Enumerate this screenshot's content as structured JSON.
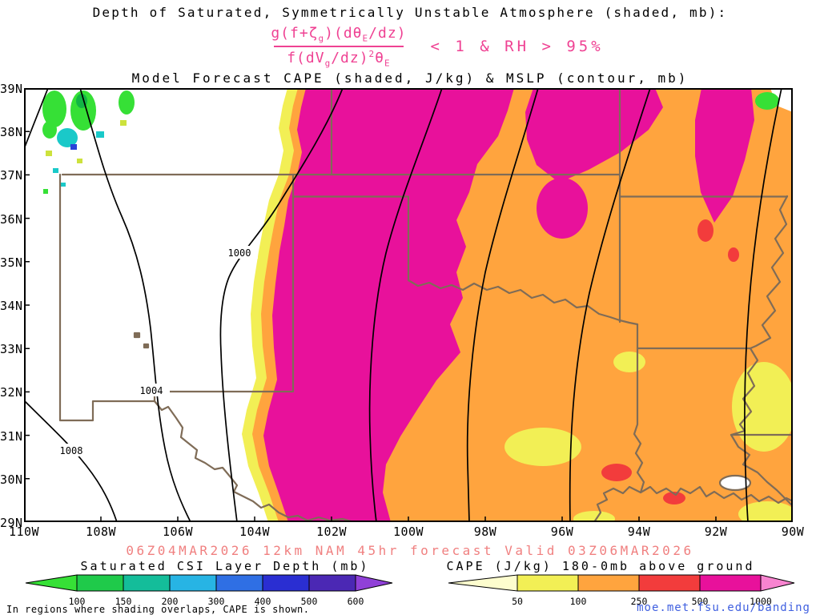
{
  "header": {
    "title1": "Depth of Saturated, Symmetrically Unstable Atmosphere (shaded, mb):",
    "formula": {
      "numerator_html": "g(f+ζ<sub>g</sub>)(dθ<sub>E</sub>/dz)",
      "denominator_html": "f(dV<sub>g</sub>/dz)<sup>2</sup>θ<sub>E</sub>",
      "condition": "< 1 & RH > 95%"
    },
    "title2": "Model Forecast CAPE (shaded, J/kg) & MSLP (contour, mb)"
  },
  "map": {
    "lat_labels": [
      "39N",
      "38N",
      "37N",
      "36N",
      "35N",
      "34N",
      "33N",
      "32N",
      "31N",
      "30N",
      "29N"
    ],
    "lon_labels": [
      "110W",
      "108W",
      "106W",
      "104W",
      "102W",
      "100W",
      "98W",
      "96W",
      "94W",
      "92W",
      "90W"
    ],
    "contour_labels": {
      "c1000": "1000",
      "c1004": "1004",
      "c1008": "1008"
    }
  },
  "footer": {
    "forecast_line": "06Z04MAR2026 12km NAM 45hr forecast Valid 03Z06MAR2026",
    "note": "In regions where shading overlaps, CAPE is shown.",
    "link": "moe.met.fsu.edu/banding"
  },
  "legend_csi": {
    "title": "Saturated CSI Layer Depth (mb)",
    "ticks": [
      "100",
      "150",
      "200",
      "300",
      "400",
      "500",
      "600"
    ]
  },
  "legend_cape": {
    "title": "CAPE (J/kg) 180-0mb above ground",
    "ticks": [
      "50",
      "100",
      "250",
      "500",
      "1000"
    ]
  },
  "palette": {
    "cape_colors": [
      "#fdfdce",
      "#f2ef55",
      "#ffa43e",
      "#f23c3c",
      "#e8119b",
      "#f884d0"
    ],
    "csi_colors": [
      "#36e036",
      "#1fca4a",
      "#14bd9a",
      "#27b4e4",
      "#2f6fe4",
      "#2a2ed2",
      "#4b28b4",
      "#9040d8"
    ],
    "csi_map": {
      "darkgreen": "#12b545",
      "cyan": "#1ac9c9",
      "blue": "#2a42d8",
      "yellowgreen": "#cde23c"
    },
    "border": "#7f6c57",
    "contour": "#000000",
    "formula_pink": "#ef4293",
    "red_text": "#f08080",
    "link_blue": "#4060e0"
  },
  "chart_data": {
    "type": "heatmap",
    "title": "Model Forecast CAPE (shaded, J/kg) & MSLP (contour, mb)",
    "region": {
      "lat_ticks": [
        "29N",
        "30N",
        "31N",
        "32N",
        "33N",
        "34N",
        "35N",
        "36N",
        "37N",
        "38N",
        "39N"
      ],
      "lon_ticks": [
        "110W",
        "108W",
        "106W",
        "104W",
        "102W",
        "100W",
        "98W",
        "96W",
        "94W",
        "92W",
        "90W"
      ]
    },
    "shaded_fields": [
      {
        "name": "Saturated CSI Layer Depth",
        "units": "mb",
        "levels": [
          100,
          150,
          200,
          300,
          400,
          500,
          600
        ],
        "colors": [
          "#36e036",
          "#1fca4a",
          "#14bd9a",
          "#27b4e4",
          "#2f6fe4",
          "#2a2ed2",
          "#4b28b4",
          "#9040d8"
        ]
      },
      {
        "name": "CAPE 180-0mb above ground",
        "units": "J/kg",
        "levels": [
          50,
          100,
          250,
          500,
          1000
        ],
        "colors": [
          "#fdfdce",
          "#f2ef55",
          "#ffa43e",
          "#f23c3c",
          "#e8119b",
          "#f884d0"
        ]
      }
    ],
    "contour_field": {
      "name": "MSLP",
      "units": "mb",
      "labeled_values": [
        1000,
        1004,
        1008
      ],
      "interval": 4
    },
    "valid": "06Z04MAR2026 12km NAM 45hr forecast Valid 03Z06MAR2026"
  }
}
